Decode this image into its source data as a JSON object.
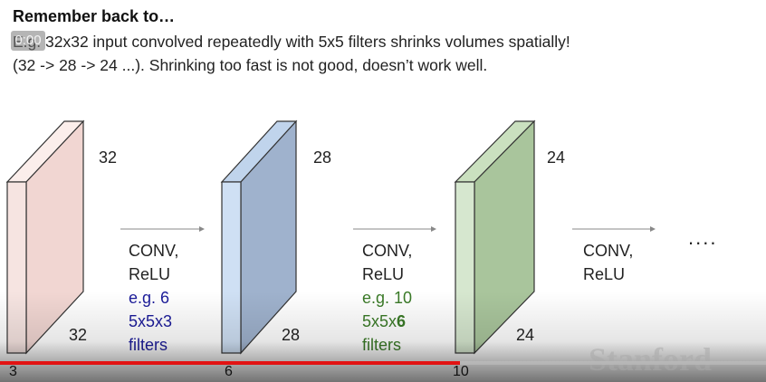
{
  "slide": {
    "title": "Remember back to…",
    "line1": "E.g. 32x32 input convolved repeatedly with 5x5 filters shrinks volumes spatially!",
    "line2": "(32 -> 28 -> 24 ...). Shrinking too fast is not good, doesn’t work well.",
    "time_badge": "0:00"
  },
  "volumes": [
    {
      "height_label": "32",
      "width_label": "32",
      "depth_label": "3",
      "front": "#f6e4e1",
      "side": "#f1d6d2",
      "top": "#fbeeeb"
    },
    {
      "height_label": "28",
      "width_label": "28",
      "depth_label": "6",
      "front": "#cfe0f4",
      "side": "#9fb2cd",
      "top": "#c0d4ec"
    },
    {
      "height_label": "24",
      "width_label": "24",
      "depth_label": "10",
      "front": "#d6e7cf",
      "side": "#a9c59c",
      "top": "#cae0bf"
    }
  ],
  "ops": [
    {
      "name": "CONV,",
      "act": "ReLU",
      "ex1": "e.g. 6",
      "ex2": "5x5x3",
      "ex3": "filters",
      "ex_color": "#1c1c9a"
    },
    {
      "name": "CONV,",
      "act": "ReLU",
      "ex1": "e.g. 10",
      "ex2": "5x5x",
      "ex2_bold": "6",
      "ex3": "filters",
      "ex_color": "#3a7a27"
    },
    {
      "name": "CONV,",
      "act": "ReLU"
    }
  ],
  "ellipsis": "....",
  "watermark": "Stanford",
  "player": {
    "progress_fraction": 0.6,
    "progress_color": "#e21313"
  }
}
